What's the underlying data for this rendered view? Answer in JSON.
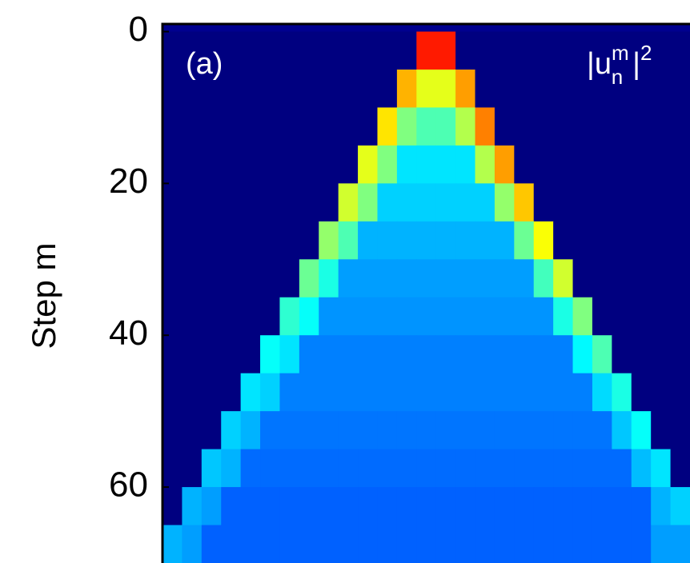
{
  "chart_data": {
    "type": "heatmap",
    "panel_label": "(a)",
    "y_label": "Step m",
    "annotation": {
      "base": "|u",
      "sup": "m",
      "sub": "n",
      "tail": "|",
      "power": "2"
    },
    "colormap": "jet",
    "clim": [
      0,
      1
    ],
    "xlim": [
      -70,
      65
    ],
    "ylim": [
      -1,
      70
    ],
    "yticks": [
      0,
      20,
      40,
      60
    ],
    "x": [
      -67.5,
      -62.5,
      -57.5,
      -52.5,
      -47.5,
      -42.5,
      -37.5,
      -32.5,
      -27.5,
      -22.5,
      -17.5,
      -12.5,
      -7.5,
      -2.5,
      2.5,
      7.5,
      12.5,
      17.5,
      22.5,
      27.5,
      32.5,
      37.5,
      42.5,
      47.5,
      52.5,
      57.5,
      62.5
    ],
    "y": [
      2.5,
      7.5,
      12.5,
      17.5,
      22.5,
      27.5,
      32.5,
      37.5,
      42.5,
      47.5,
      52.5,
      57.5,
      62.5,
      67.5
    ],
    "values": [
      [
        0,
        0,
        0,
        0,
        0,
        0,
        0,
        0,
        0,
        0,
        0,
        0,
        0,
        0.85,
        0.85,
        0,
        0,
        0,
        0,
        0,
        0,
        0,
        0,
        0,
        0,
        0,
        0
      ],
      [
        0,
        0,
        0,
        0,
        0,
        0,
        0,
        0,
        0,
        0,
        0,
        0,
        0.7,
        0.6,
        0.6,
        0.72,
        0,
        0,
        0,
        0,
        0,
        0,
        0,
        0,
        0,
        0,
        0
      ],
      [
        0,
        0,
        0,
        0,
        0,
        0,
        0,
        0,
        0,
        0,
        0,
        0.65,
        0.5,
        0.45,
        0.45,
        0.55,
        0.75,
        0,
        0,
        0,
        0,
        0,
        0,
        0,
        0,
        0,
        0
      ],
      [
        0,
        0,
        0,
        0,
        0,
        0,
        0,
        0,
        0,
        0,
        0.6,
        0.5,
        0.35,
        0.35,
        0.35,
        0.35,
        0.55,
        0.72,
        0,
        0,
        0,
        0,
        0,
        0,
        0,
        0,
        0
      ],
      [
        0,
        0,
        0,
        0,
        0,
        0,
        0,
        0,
        0,
        0.58,
        0.5,
        0.33,
        0.33,
        0.33,
        0.33,
        0.33,
        0.33,
        0.52,
        0.68,
        0,
        0,
        0,
        0,
        0,
        0,
        0,
        0
      ],
      [
        0,
        0,
        0,
        0,
        0,
        0,
        0,
        0,
        0.52,
        0.45,
        0.3,
        0.3,
        0.3,
        0.3,
        0.3,
        0.3,
        0.3,
        0.3,
        0.48,
        0.62,
        0,
        0,
        0,
        0,
        0,
        0,
        0
      ],
      [
        0,
        0,
        0,
        0,
        0,
        0,
        0,
        0.48,
        0.4,
        0.28,
        0.28,
        0.28,
        0.28,
        0.28,
        0.28,
        0.28,
        0.28,
        0.28,
        0.28,
        0.44,
        0.58,
        0,
        0,
        0,
        0,
        0,
        0
      ],
      [
        0,
        0,
        0,
        0,
        0,
        0,
        0.42,
        0.38,
        0.27,
        0.27,
        0.27,
        0.27,
        0.27,
        0.27,
        0.27,
        0.27,
        0.27,
        0.27,
        0.27,
        0.27,
        0.4,
        0.5,
        0,
        0,
        0,
        0,
        0
      ],
      [
        0,
        0,
        0,
        0,
        0,
        0.38,
        0.35,
        0.25,
        0.25,
        0.25,
        0.25,
        0.25,
        0.25,
        0.25,
        0.25,
        0.25,
        0.25,
        0.25,
        0.25,
        0.25,
        0.25,
        0.37,
        0.45,
        0,
        0,
        0,
        0
      ],
      [
        0,
        0,
        0,
        0,
        0.35,
        0.33,
        0.25,
        0.25,
        0.25,
        0.25,
        0.25,
        0.25,
        0.25,
        0.25,
        0.25,
        0.25,
        0.25,
        0.25,
        0.25,
        0.25,
        0.25,
        0.25,
        0.34,
        0.4,
        0,
        0,
        0
      ],
      [
        0,
        0,
        0,
        0.33,
        0.3,
        0.24,
        0.24,
        0.24,
        0.24,
        0.24,
        0.24,
        0.24,
        0.24,
        0.24,
        0.24,
        0.24,
        0.24,
        0.24,
        0.24,
        0.24,
        0.24,
        0.24,
        0.24,
        0.32,
        0.38,
        0,
        0
      ],
      [
        0,
        0,
        0.32,
        0.3,
        0.23,
        0.23,
        0.23,
        0.23,
        0.23,
        0.23,
        0.23,
        0.23,
        0.23,
        0.23,
        0.23,
        0.23,
        0.23,
        0.23,
        0.23,
        0.23,
        0.23,
        0.23,
        0.23,
        0.23,
        0.31,
        0.35,
        0
      ],
      [
        0,
        0.3,
        0.28,
        0.22,
        0.22,
        0.22,
        0.22,
        0.22,
        0.22,
        0.22,
        0.22,
        0.22,
        0.22,
        0.22,
        0.22,
        0.22,
        0.22,
        0.22,
        0.22,
        0.22,
        0.22,
        0.22,
        0.22,
        0.22,
        0.22,
        0.3,
        0.33
      ],
      [
        0.3,
        0.28,
        0.22,
        0.22,
        0.22,
        0.22,
        0.22,
        0.22,
        0.22,
        0.22,
        0.22,
        0.22,
        0.22,
        0.22,
        0.22,
        0.22,
        0.22,
        0.22,
        0.22,
        0.22,
        0.22,
        0.22,
        0.22,
        0.22,
        0.22,
        0.28,
        0.28
      ]
    ]
  }
}
